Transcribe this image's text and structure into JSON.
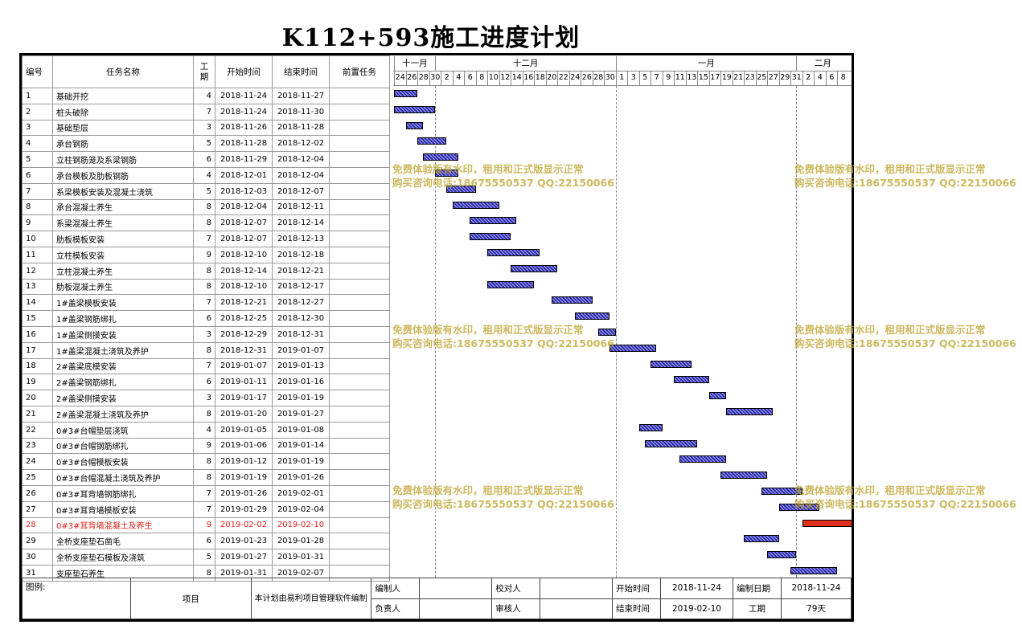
{
  "title": "K112+593施工进度计划",
  "headers": {
    "id": "编号",
    "name": "任务名称",
    "duration": "工\n期",
    "start": "开始时间",
    "end": "结束时间",
    "pred": "前置任务"
  },
  "months": [
    {
      "label": "十一月",
      "from": "2018-11-24",
      "to": "2018-11-30"
    },
    {
      "label": "十二月",
      "from": "2018-12-01",
      "to": "2018-12-31"
    },
    {
      "label": "一月",
      "from": "2019-01-01",
      "to": "2019-01-31"
    },
    {
      "label": "二月",
      "from": "2019-02-01",
      "to": "2019-02-09"
    }
  ],
  "day_labels": [
    "24",
    "26",
    "28",
    "30",
    "2",
    "4",
    "6",
    "8",
    "10",
    "12",
    "14",
    "16",
    "18",
    "20",
    "22",
    "24",
    "26",
    "28",
    "30",
    "1",
    "3",
    "5",
    "7",
    "9",
    "11",
    "13",
    "15",
    "17",
    "19",
    "21",
    "23",
    "25",
    "27",
    "29",
    "31",
    "2",
    "4",
    "6",
    "8"
  ],
  "timeline_start": "2018-11-24",
  "tasks": [
    {
      "id": "1",
      "name": "基础开挖",
      "duration": 4,
      "start": "2018-11-24",
      "end": "2018-11-27"
    },
    {
      "id": "2",
      "name": "桩头破除",
      "duration": 7,
      "start": "2018-11-24",
      "end": "2018-11-30"
    },
    {
      "id": "3",
      "name": "基础垫层",
      "duration": 3,
      "start": "2018-11-26",
      "end": "2018-11-28"
    },
    {
      "id": "4",
      "name": "承台钢筋",
      "duration": 5,
      "start": "2018-11-28",
      "end": "2018-12-02"
    },
    {
      "id": "5",
      "name": "立柱钢筋笼及系梁钢筋",
      "duration": 6,
      "start": "2018-11-29",
      "end": "2018-12-04"
    },
    {
      "id": "6",
      "name": "承台模板及肋板钢筋",
      "duration": 4,
      "start": "2018-12-01",
      "end": "2018-12-04"
    },
    {
      "id": "7",
      "name": "系梁模板安装及混凝土浇筑",
      "duration": 5,
      "start": "2018-12-03",
      "end": "2018-12-07"
    },
    {
      "id": "8",
      "name": "承台混凝土养生",
      "duration": 8,
      "start": "2018-12-04",
      "end": "2018-12-11"
    },
    {
      "id": "9",
      "name": "系梁混凝土养生",
      "duration": 8,
      "start": "2018-12-07",
      "end": "2018-12-14"
    },
    {
      "id": "10",
      "name": "肋板模板安装",
      "duration": 7,
      "start": "2018-12-07",
      "end": "2018-12-13"
    },
    {
      "id": "11",
      "name": "立柱模板安装",
      "duration": 9,
      "start": "2018-12-10",
      "end": "2018-12-18"
    },
    {
      "id": "12",
      "name": "立柱混凝土养生",
      "duration": 8,
      "start": "2018-12-14",
      "end": "2018-12-21"
    },
    {
      "id": "13",
      "name": "肋板混凝土养生",
      "duration": 8,
      "start": "2018-12-10",
      "end": "2018-12-17"
    },
    {
      "id": "14",
      "name": "1#盖梁模板安装",
      "duration": 7,
      "start": "2018-12-21",
      "end": "2018-12-27"
    },
    {
      "id": "15",
      "name": "1#盖梁钢筋绑扎",
      "duration": 6,
      "start": "2018-12-25",
      "end": "2018-12-30"
    },
    {
      "id": "16",
      "name": "1#盖梁侧摸安装",
      "duration": 3,
      "start": "2018-12-29",
      "end": "2018-12-31"
    },
    {
      "id": "17",
      "name": "1#盖梁混凝土浇筑及养护",
      "duration": 8,
      "start": "2018-12-31",
      "end": "2019-01-07"
    },
    {
      "id": "18",
      "name": "2#盖梁底模安装",
      "duration": 7,
      "start": "2019-01-07",
      "end": "2019-01-13"
    },
    {
      "id": "19",
      "name": "2#盖梁钢筋绑扎",
      "duration": 6,
      "start": "2019-01-11",
      "end": "2019-01-16"
    },
    {
      "id": "20",
      "name": "2#盖梁侧摸安装",
      "duration": 3,
      "start": "2019-01-17",
      "end": "2019-01-19"
    },
    {
      "id": "21",
      "name": "2#盖梁混凝土浇筑及养护",
      "duration": 8,
      "start": "2019-01-20",
      "end": "2019-01-27"
    },
    {
      "id": "22",
      "name": "0#3#台帽垫层浇筑",
      "duration": 4,
      "start": "2019-01-05",
      "end": "2019-01-08"
    },
    {
      "id": "23",
      "name": "0#3#台帽钢筋绑扎",
      "duration": 9,
      "start": "2019-01-06",
      "end": "2019-01-14"
    },
    {
      "id": "24",
      "name": "0#3#台帽模板安装",
      "duration": 8,
      "start": "2019-01-12",
      "end": "2019-01-19"
    },
    {
      "id": "25",
      "name": "0#3#台帽混凝土浇筑及养护",
      "duration": 8,
      "start": "2019-01-19",
      "end": "2019-01-26"
    },
    {
      "id": "26",
      "name": "0#3#耳背墙钢筋绑扎",
      "duration": 7,
      "start": "2019-01-26",
      "end": "2019-02-01"
    },
    {
      "id": "27",
      "name": "0#3#耳背墙模板安装",
      "duration": 7,
      "start": "2019-01-29",
      "end": "2019-02-04"
    },
    {
      "id": "28",
      "name": "0#3#耳背墙混凝土及养生",
      "duration": 9,
      "start": "2019-02-02",
      "end": "2019-02-10",
      "critical": true
    },
    {
      "id": "29",
      "name": "全桥支座垫石凿毛",
      "duration": 6,
      "start": "2019-01-23",
      "end": "2019-01-28"
    },
    {
      "id": "30",
      "name": "全桥支座垫石模板及浇筑",
      "duration": 5,
      "start": "2019-01-27",
      "end": "2019-01-31"
    },
    {
      "id": "31",
      "name": "支座垫石养生",
      "duration": 8,
      "start": "2019-01-31",
      "end": "2019-02-07"
    }
  ],
  "watermark": {
    "line1": "免费体验版有水印，租用和正式版显示正常",
    "line2": "购买咨询电话:18675550537 QQ:22150066"
  },
  "footer": {
    "legend_label": "图例:",
    "item_label": "项目",
    "software_note": "本计划由易利项目管理软件编制",
    "compiler_label": "编制人",
    "checker_label": "校对人",
    "start_label": "开始时间",
    "start_value": "2018-11-24",
    "compile_date_label": "编制日期",
    "compile_date_value": "2018-11-24",
    "owner_label": "负责人",
    "reviewer_label": "审核人",
    "end_label": "结束时间",
    "end_value": "2019-02-10",
    "duration_label": "工期",
    "duration_value": "79天"
  },
  "colors": {
    "bar": "#3030b8",
    "critical_bar": "#e0301c",
    "critical_text": "#e0201a",
    "watermark": "#bea028"
  }
}
